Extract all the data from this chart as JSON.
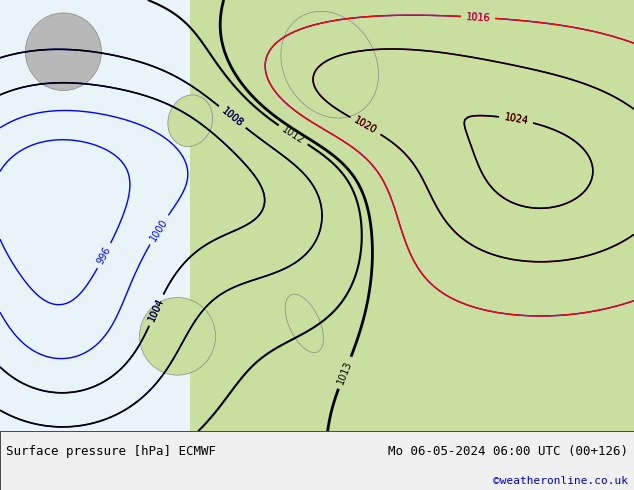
{
  "title_left": "Surface pressure [hPa] ECMWF",
  "title_right": "Mo 06-05-2024 06:00 UTC (00+126)",
  "copyright": "©weatheronline.co.uk",
  "bg_color": "#e8f4f8",
  "land_color": "#c8dfa0",
  "border_bottom_color": "#000000",
  "text_color_black": "#000000",
  "text_color_blue": "#0000cc",
  "text_color_red": "#cc0000",
  "footer_bg": "#f0f0f0",
  "figsize": [
    6.34,
    4.9
  ],
  "dpi": 100
}
